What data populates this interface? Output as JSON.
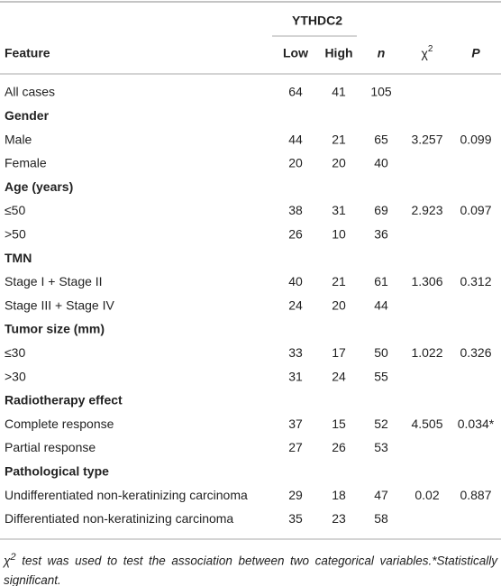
{
  "table": {
    "group_header": "YTHDC2",
    "columns": [
      "Feature",
      "Low",
      "High",
      "n",
      {
        "base": "χ",
        "sup": "2"
      },
      "P"
    ],
    "rows": [
      {
        "cells": [
          "All cases",
          64,
          41,
          105
        ]
      },
      {
        "heading": "Gender"
      },
      {
        "cells": [
          "Male",
          44,
          21,
          65,
          3.257,
          0.099
        ]
      },
      {
        "cells": [
          "Female",
          20,
          20,
          40
        ]
      },
      {
        "heading": "Age (years)"
      },
      {
        "cells": [
          "≤50",
          38,
          31,
          69,
          2.923,
          0.097
        ]
      },
      {
        "cells": [
          ">50",
          26,
          10,
          36
        ]
      },
      {
        "heading": "TMN"
      },
      {
        "cells": [
          "Stage I + Stage II",
          40,
          21,
          61,
          1.306,
          0.312
        ]
      },
      {
        "cells": [
          "Stage III + Stage IV",
          24,
          20,
          44
        ]
      },
      {
        "heading": "Tumor size (mm)"
      },
      {
        "cells": [
          "≤30",
          33,
          17,
          50,
          1.022,
          0.326
        ]
      },
      {
        "cells": [
          ">30",
          31,
          24,
          55
        ]
      },
      {
        "heading": "Radiotherapy effect"
      },
      {
        "cells": [
          "Complete response",
          37,
          15,
          52,
          4.505,
          "0.034*"
        ]
      },
      {
        "cells": [
          "Partial response",
          27,
          26,
          53
        ]
      },
      {
        "heading": "Pathological type"
      },
      {
        "cells": [
          "Undifferentiated non-keratinizing carcinoma",
          29,
          18,
          47,
          0.02,
          0.887
        ]
      },
      {
        "cells": [
          "Differentiated non-keratinizing carcinoma",
          35,
          23,
          58
        ]
      }
    ],
    "footnote": {
      "base": "χ",
      "sup": "2",
      "text": " test was used to test the association between two categorical variables.*Statistically significant."
    }
  }
}
